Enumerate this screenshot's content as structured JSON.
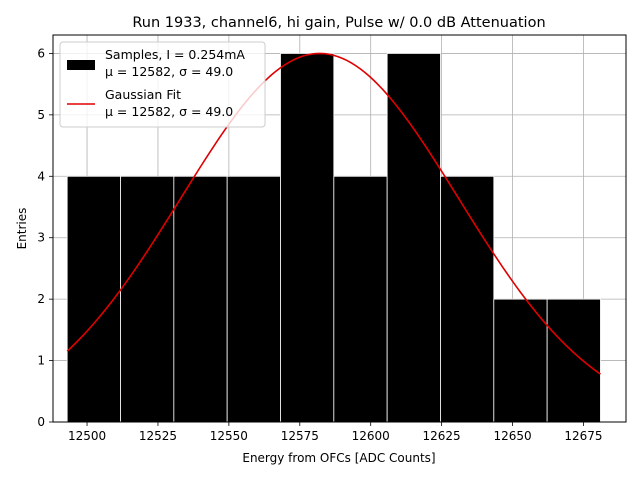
{
  "chart_data": {
    "type": "bar",
    "title": "Run 1933, channel6, hi gain, Pulse w/ 0.0 dB Attenuation",
    "xlabel": "Energy from OFCs [ADC Counts]",
    "ylabel": "Entries",
    "xlim": [
      12488,
      12690
    ],
    "ylim": [
      0,
      6.3
    ],
    "xticks": [
      12500,
      12525,
      12550,
      12575,
      12600,
      12625,
      12650,
      12675
    ],
    "yticks": [
      0,
      1,
      2,
      3,
      4,
      5,
      6
    ],
    "grid": true,
    "legend_position": "top-left",
    "bin_edges": [
      12493,
      12511.8,
      12530.6,
      12549.4,
      12568.2,
      12587,
      12605.8,
      12624.6,
      12643.4,
      12662.2,
      12681
    ],
    "counts": [
      4,
      4,
      4,
      4,
      6,
      4,
      6,
      4,
      2,
      2
    ],
    "bar_color": "#000000",
    "fit": {
      "type": "gaussian",
      "mu": 12582,
      "sigma": 49.0,
      "amplitude": 6.0,
      "x_range": [
        12493,
        12681
      ],
      "color": "#e00000"
    },
    "legend": [
      {
        "label_line1": "Samples, I = 0.254mA",
        "label_line2": "μ = 12582, σ = 49.0",
        "swatch": "bar"
      },
      {
        "label_line1": "Gaussian Fit",
        "label_line2": "μ = 12582, σ = 49.0",
        "swatch": "line"
      }
    ]
  }
}
